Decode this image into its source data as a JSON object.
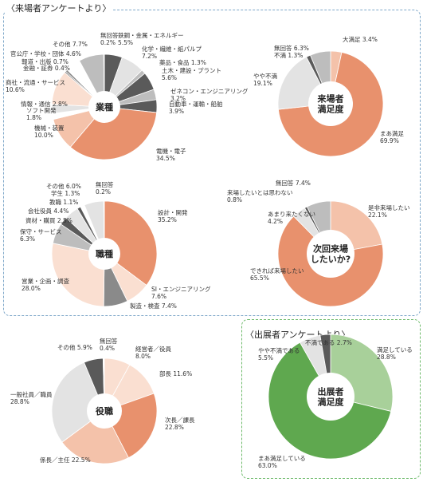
{
  "visitor_section_title": "〈来場者アンケートより〉",
  "exhibitor_section_title": "〈出展者アンケートより〉",
  "colors": {
    "salmon": "#e8916d",
    "salmon_light": "#f4c2aa",
    "salmon_pale": "#fadfd1",
    "gray_dark": "#5a5a5a",
    "gray_mid": "#8a8a8a",
    "gray_light": "#bdbdbd",
    "gray_pale": "#e3e3e3",
    "green_dark": "#5fa84f",
    "green_light": "#a8d09a",
    "frame_blue": "#7fa8c9",
    "frame_green": "#6dba6a"
  },
  "chart_data": [
    {
      "type": "pie",
      "id": "industry",
      "title": "業種",
      "slices": [
        {
          "label": "鉄鋼・金属・エネルギー",
          "value": 5.5,
          "color": "#5a5a5a"
        },
        {
          "label": "化学・繊維・紙パルプ",
          "value": 7.2,
          "color": "#e3e3e3"
        },
        {
          "label": "薬品・食品",
          "value": 1.3,
          "color": "#bdbdbd"
        },
        {
          "label": "土木・建設・プラント",
          "value": 5.6,
          "color": "#5a5a5a"
        },
        {
          "label": "ゼネコン・エンジニアリング",
          "value": 3.2,
          "color": "#bdbdbd"
        },
        {
          "label": "自動車・運輸・船舶",
          "value": 3.9,
          "color": "#5a5a5a"
        },
        {
          "label": "電機・電子",
          "value": 34.5,
          "color": "#e8916d"
        },
        {
          "label": "機械・装置",
          "value": 10.0,
          "color": "#f4c2aa"
        },
        {
          "label": "ソフト開発",
          "value": 1.8,
          "color": "#ffffff"
        },
        {
          "label": "情報・通信",
          "value": 2.8,
          "color": "#e3e3e3"
        },
        {
          "label": "商社・流通・サービス",
          "value": 10.6,
          "color": "#fadfd1"
        },
        {
          "label": "金融・証券",
          "value": 0.4,
          "color": "#5a5a5a"
        },
        {
          "label": "報道・出版",
          "value": 0.7,
          "color": "#8a8a8a"
        },
        {
          "label": "官公庁・学校・団体",
          "value": 4.6,
          "color": "#ffffff"
        },
        {
          "label": "その他",
          "value": 7.7,
          "color": "#bdbdbd"
        },
        {
          "label": "無回答",
          "value": 0.2,
          "color": "#5a5a5a"
        }
      ],
      "labels": [
        {
          "lines": [
            "鉄鋼・金属・エネルギー",
            "5.5%"
          ]
        },
        {
          "lines": [
            "化学・繊維・紙パルプ",
            "7.2%"
          ]
        },
        {
          "lines": [
            "薬品・食品 1.3%"
          ]
        },
        {
          "lines": [
            "土木・建設・プラント",
            "5.6%"
          ]
        },
        {
          "lines": [
            "ゼネコン・エンジニアリング",
            "3.2%"
          ]
        },
        {
          "lines": [
            "自動車・運輸・船舶",
            "3.9%"
          ]
        },
        {
          "lines": [
            "電機・電子",
            "34.5%"
          ]
        },
        {
          "lines": [
            "機械・装置",
            "10.0%"
          ]
        },
        {
          "lines": [
            "ソフト開発",
            "1.8%"
          ]
        },
        {
          "lines": [
            "情報・通信 2.8%"
          ]
        },
        {
          "lines": [
            "商社・流通・サービス",
            "10.6%"
          ]
        },
        {
          "lines": [
            "金融・証券 0.4%"
          ]
        },
        {
          "lines": [
            "報道・出版 0.7%"
          ]
        },
        {
          "lines": [
            "官公庁・学校・団体 4.6%"
          ]
        },
        {
          "lines": [
            "その他 7.7%"
          ]
        },
        {
          "lines": [
            "無回答",
            "0.2%"
          ]
        }
      ]
    },
    {
      "type": "pie",
      "id": "satisfaction",
      "title": "来場者満足度",
      "center_lines": [
        "来場者",
        "満足度"
      ],
      "slices": [
        {
          "label": "大満足",
          "value": 3.4,
          "color": "#f4c2aa"
        },
        {
          "label": "まあ満足",
          "value": 69.9,
          "color": "#e8916d"
        },
        {
          "label": "やや不満",
          "value": 19.1,
          "color": "#e3e3e3"
        },
        {
          "label": "不満",
          "value": 1.3,
          "color": "#5a5a5a"
        },
        {
          "label": "無回答",
          "value": 6.3,
          "color": "#bdbdbd"
        }
      ],
      "labels": [
        {
          "lines": [
            "大満足 3.4%"
          ]
        },
        {
          "lines": [
            "まあ満足",
            "69.9%"
          ]
        },
        {
          "lines": [
            "やや不満",
            "19.1%"
          ]
        },
        {
          "lines": [
            "不満 1.3%"
          ]
        },
        {
          "lines": [
            "無回答 6.3%"
          ]
        }
      ]
    },
    {
      "type": "pie",
      "id": "job",
      "title": "職種",
      "slices": [
        {
          "label": "設計・開発",
          "value": 35.2,
          "color": "#e8916d"
        },
        {
          "label": "SI・エンジニアリング",
          "value": 7.6,
          "color": "#fadfd1"
        },
        {
          "label": "製造・検査",
          "value": 7.4,
          "color": "#8a8a8a"
        },
        {
          "label": "営業・企画・調査",
          "value": 28.0,
          "color": "#fadfd1"
        },
        {
          "label": "保守・サービス",
          "value": 6.3,
          "color": "#bdbdbd"
        },
        {
          "label": "資材・購買",
          "value": 2.5,
          "color": "#5a5a5a"
        },
        {
          "label": "会社役員",
          "value": 4.4,
          "color": "#e3e3e3"
        },
        {
          "label": "教職",
          "value": 1.1,
          "color": "#5a5a5a"
        },
        {
          "label": "学生",
          "value": 1.3,
          "color": "#ffffff"
        },
        {
          "label": "その他",
          "value": 6.0,
          "color": "#e3e3e3"
        },
        {
          "label": "無回答",
          "value": 0.2,
          "color": "#5a5a5a"
        }
      ],
      "labels": [
        {
          "lines": [
            "設計・開発",
            "35.2%"
          ]
        },
        {
          "lines": [
            "SI・エンジニアリング",
            "7.6%"
          ]
        },
        {
          "lines": [
            "製造・検査 7.4%"
          ]
        },
        {
          "lines": [
            "営業・企画・調査",
            "28.0%"
          ]
        },
        {
          "lines": [
            "保守・サービス",
            "6.3%"
          ]
        },
        {
          "lines": [
            "資材・購買 2.5%"
          ]
        },
        {
          "lines": [
            "会社役員 4.4%"
          ]
        },
        {
          "lines": [
            "教職 1.1%"
          ]
        },
        {
          "lines": [
            "学生 1.3%"
          ]
        },
        {
          "lines": [
            "その他 6.0%"
          ]
        },
        {
          "lines": [
            "無回答",
            "0.2%"
          ]
        }
      ]
    },
    {
      "type": "pie",
      "id": "revisit",
      "title": "次回来場したいか?",
      "center_lines": [
        "次回来場",
        "したいか?"
      ],
      "slices": [
        {
          "label": "是非来場したい",
          "value": 22.1,
          "color": "#f4c2aa"
        },
        {
          "label": "できれば来場したい",
          "value": 65.5,
          "color": "#e8916d"
        },
        {
          "label": "あまり来たくない",
          "value": 4.2,
          "color": "#e3e3e3"
        },
        {
          "label": "来場したいとは思わない",
          "value": 0.8,
          "color": "#5a5a5a"
        },
        {
          "label": "無回答",
          "value": 7.4,
          "color": "#bdbdbd"
        }
      ],
      "labels": [
        {
          "lines": [
            "是非来場したい",
            "22.1%"
          ]
        },
        {
          "lines": [
            "できれば来場したい",
            "65.5%"
          ]
        },
        {
          "lines": [
            "あまり来たくない",
            "4.2%"
          ]
        },
        {
          "lines": [
            "来場したいとは思わない",
            "0.8%"
          ]
        },
        {
          "lines": [
            "無回答 7.4%"
          ]
        }
      ]
    },
    {
      "type": "pie",
      "id": "position",
      "title": "役職",
      "slices": [
        {
          "label": "経営者／役員",
          "value": 8.0,
          "color": "#fadfd1"
        },
        {
          "label": "部長",
          "value": 11.6,
          "color": "#fadfd1"
        },
        {
          "label": "次長／課長",
          "value": 22.8,
          "color": "#e8916d"
        },
        {
          "label": "係長／主任",
          "value": 22.5,
          "color": "#f4c2aa"
        },
        {
          "label": "一般社員／職員",
          "value": 28.8,
          "color": "#e3e3e3"
        },
        {
          "label": "その他",
          "value": 5.9,
          "color": "#5a5a5a"
        },
        {
          "label": "無回答",
          "value": 0.4,
          "color": "#ffffff"
        }
      ],
      "labels": [
        {
          "lines": [
            "経営者／役員",
            "8.0%"
          ]
        },
        {
          "lines": [
            "部長 11.6%"
          ]
        },
        {
          "lines": [
            "次長／課長",
            "22.8%"
          ]
        },
        {
          "lines": [
            "係長／主任 22.5%"
          ]
        },
        {
          "lines": [
            "一般社員／職員",
            "28.8%"
          ]
        },
        {
          "lines": [
            "その他 5.9%"
          ]
        },
        {
          "lines": [
            "無回答",
            "0.4%"
          ]
        }
      ]
    },
    {
      "type": "pie",
      "id": "exhibitor",
      "title": "出展者満足度",
      "center_lines": [
        "出展者",
        "満足度"
      ],
      "slices": [
        {
          "label": "満足している",
          "value": 28.8,
          "color": "#a8d09a"
        },
        {
          "label": "まあ満足している",
          "value": 63.0,
          "color": "#5fa84f"
        },
        {
          "label": "やや不満である",
          "value": 5.5,
          "color": "#e3e3e3"
        },
        {
          "label": "不満である",
          "value": 2.7,
          "color": "#5a5a5a"
        }
      ],
      "labels": [
        {
          "lines": [
            "満足している",
            "28.8%"
          ]
        },
        {
          "lines": [
            "まあ満足している",
            "63.0%"
          ]
        },
        {
          "lines": [
            "やや不満である",
            "5.5%"
          ]
        },
        {
          "lines": [
            "不満である 2.7%"
          ]
        }
      ]
    }
  ]
}
